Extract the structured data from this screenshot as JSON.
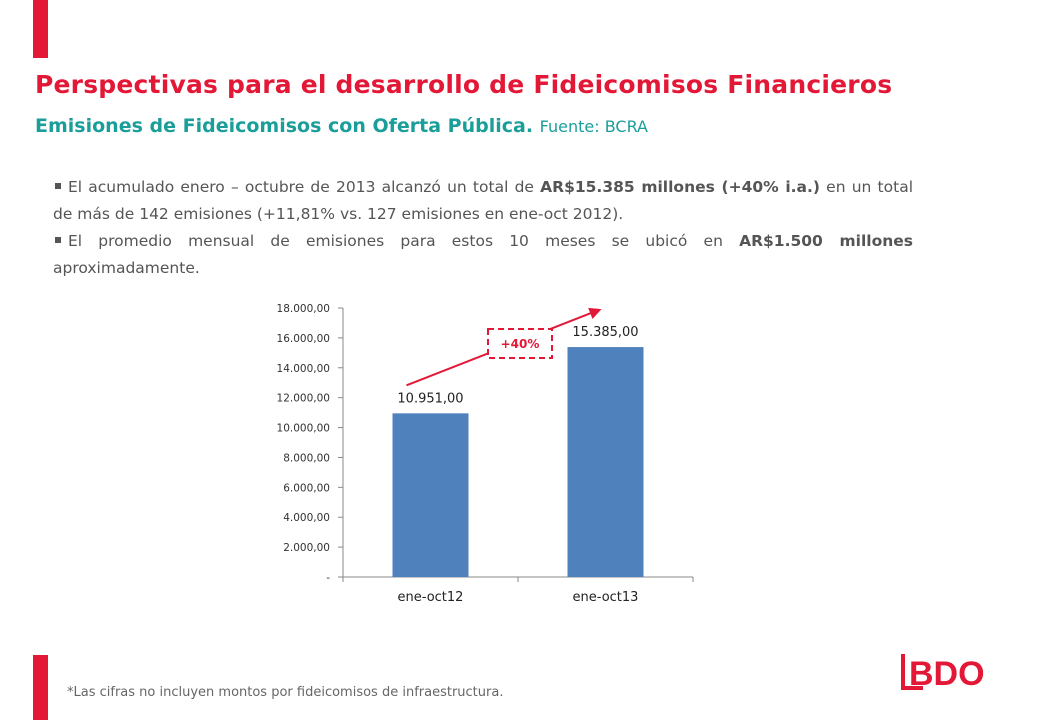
{
  "header": {
    "title": "Perspectivas para el desarrollo de Fideicomisos Financieros",
    "subtitle": "Emisiones de Fideicomisos con Oferta Pública.",
    "source": "Fuente: BCRA"
  },
  "bullets": [
    {
      "t1": "El acumulado enero – octubre de 2013 alcanzó un total de ",
      "b1": "AR$15.385 millones (+40% i.a.)",
      "t2": " en un total de más de 142 emisiones (+11,81% vs. 127 emisiones en ene-oct 2012)."
    },
    {
      "t1": "El promedio mensual de emisiones para estos 10 meses se ubicó en ",
      "b1": "AR$1.500 millones",
      "t2": " aproximadamente."
    }
  ],
  "chart_data": {
    "type": "bar",
    "categories": [
      "ene-oct12",
      "ene-oct13"
    ],
    "values": [
      10951,
      15385
    ],
    "data_labels": [
      "10.951,00",
      "15.385,00"
    ],
    "yticks": [
      "-",
      "2.000,00",
      "4.000,00",
      "6.000,00",
      "8.000,00",
      "10.000,00",
      "12.000,00",
      "14.000,00",
      "16.000,00",
      "18.000,00"
    ],
    "ylim": [
      0,
      18000
    ],
    "bar_color": "#4f81bd",
    "annotation": "+40%",
    "annotation_color": "#e31837"
  },
  "footnote": "*Las cifras no incluyen montos por fideicomisos de infraestructura.",
  "logo": {
    "text": "BDO",
    "color": "#e31837"
  }
}
